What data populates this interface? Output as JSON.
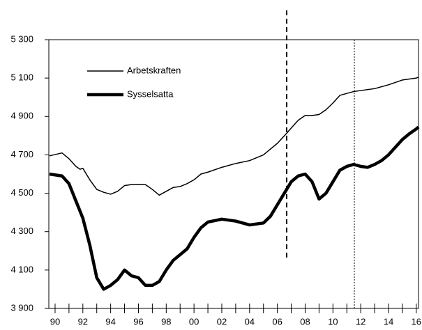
{
  "chart_data": {
    "type": "line",
    "legend": "upper left",
    "xlim": [
      1989.55,
      2016.16
    ],
    "ylim": [
      3900,
      5300
    ],
    "yticks": [
      {
        "value": 3900,
        "label": "3 900"
      },
      {
        "value": 4100,
        "label": "4 100"
      },
      {
        "value": 4300,
        "label": "4 300"
      },
      {
        "value": 4500,
        "label": "4 500"
      },
      {
        "value": 4700,
        "label": "4 700"
      },
      {
        "value": 4900,
        "label": "4 900"
      },
      {
        "value": 5100,
        "label": "5 100"
      },
      {
        "value": 5300,
        "label": "5 300"
      }
    ],
    "xticks": [
      {
        "value": 1990,
        "label": "90"
      },
      {
        "value": 1992,
        "label": "92"
      },
      {
        "value": 1994,
        "label": "94"
      },
      {
        "value": 1996,
        "label": "96"
      },
      {
        "value": 1998,
        "label": "98"
      },
      {
        "value": 2000,
        "label": "00"
      },
      {
        "value": 2002,
        "label": "02"
      },
      {
        "value": 2004,
        "label": "04"
      },
      {
        "value": 2006,
        "label": "06"
      },
      {
        "value": 2008,
        "label": "08"
      },
      {
        "value": 2010,
        "label": "10"
      },
      {
        "value": 2012,
        "label": "12"
      },
      {
        "value": 2014,
        "label": "14"
      },
      {
        "value": 2016,
        "label": "16"
      }
    ],
    "xminorticks": [
      1991,
      1993,
      1995,
      1997,
      1999,
      2001,
      2003,
      2005,
      2007,
      2009,
      2011,
      2013,
      2015
    ],
    "vlines": [
      {
        "x": 2006.67,
        "y1": 4165,
        "y2": 5456,
        "style": "dashed",
        "width": 2
      },
      {
        "x": 2011.54,
        "y1": 3900,
        "y2": 5300,
        "style": "dotted",
        "width": 1
      }
    ],
    "series": [
      {
        "name": "Arbetskraften",
        "color": "#000000",
        "width": 1.5,
        "x": [
          1989.6,
          1990.5,
          1991,
          1991.5,
          1991.8,
          1992,
          1992.5,
          1993,
          1993.5,
          1994,
          1994.5,
          1995,
          1995.5,
          1996,
          1996.5,
          1997,
          1997.5,
          1998,
          1998.5,
          1999,
          1999.5,
          2000,
          2000.5,
          2001,
          2002,
          2003,
          2004,
          2005,
          2006,
          2006.7,
          2007,
          2007.5,
          2008,
          2008.5,
          2009,
          2009.5,
          2010,
          2010.5,
          2011,
          2011.5,
          2012,
          2013,
          2014,
          2015,
          2016,
          2016.16
        ],
        "values": [
          4695,
          4710,
          4680,
          4640,
          4625,
          4630,
          4570,
          4520,
          4505,
          4495,
          4510,
          4540,
          4545,
          4545,
          4545,
          4520,
          4490,
          4510,
          4530,
          4535,
          4550,
          4570,
          4600,
          4610,
          4635,
          4655,
          4670,
          4700,
          4760,
          4815,
          4840,
          4880,
          4905,
          4905,
          4910,
          4935,
          4970,
          5010,
          5020,
          5030,
          5035,
          5045,
          5065,
          5090,
          5100,
          5105
        ]
      },
      {
        "name": "Sysselsatta",
        "color": "#000000",
        "width": 4.5,
        "x": [
          1989.6,
          1990.5,
          1991,
          1991.5,
          1992,
          1992.5,
          1993,
          1993.5,
          1994,
          1994.5,
          1995,
          1995.5,
          1996,
          1996.5,
          1997,
          1997.5,
          1998,
          1998.5,
          1999,
          1999.5,
          2000,
          2000.5,
          2001,
          2002,
          2003,
          2004,
          2005,
          2005.5,
          2006,
          2006.5,
          2007,
          2007.5,
          2008,
          2008.5,
          2009,
          2009.5,
          2010,
          2010.5,
          2011,
          2011.5,
          2012,
          2012.5,
          2013,
          2013.5,
          2014,
          2014.5,
          2015,
          2015.5,
          2016,
          2016.16
        ],
        "values": [
          4600,
          4590,
          4550,
          4460,
          4370,
          4230,
          4060,
          4000,
          4020,
          4050,
          4100,
          4070,
          4060,
          4020,
          4020,
          4040,
          4100,
          4150,
          4180,
          4210,
          4270,
          4320,
          4350,
          4365,
          4355,
          4335,
          4345,
          4380,
          4440,
          4500,
          4560,
          4590,
          4600,
          4560,
          4470,
          4500,
          4560,
          4620,
          4640,
          4650,
          4640,
          4635,
          4650,
          4670,
          4700,
          4740,
          4780,
          4810,
          4835,
          4845
        ]
      }
    ]
  }
}
